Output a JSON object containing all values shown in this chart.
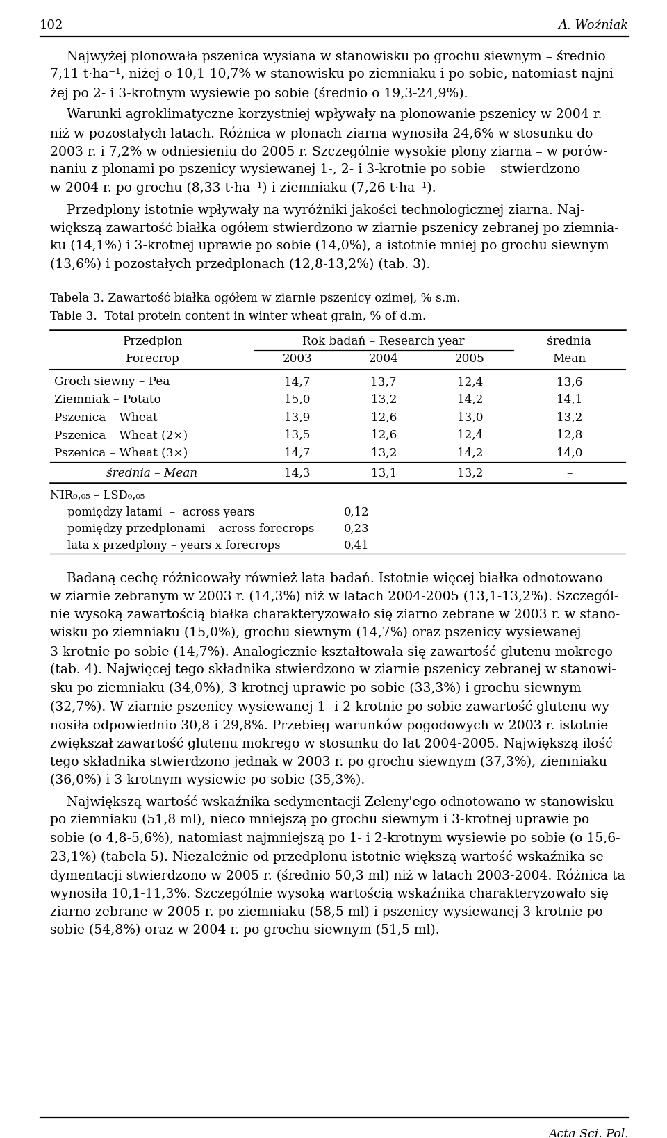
{
  "page_number": "102",
  "page_author": "A. Woźniak",
  "paragraph1_lines": [
    "    Najwyżej plonowała pszenica wysiana w stanowisku po grochu siewnym – średnio",
    "7,11 t·ha⁻¹, niżej o 10,1-10,7% w stanowisku po ziemniaku i po sobie, natomiast najni-",
    "żej po 2- i 3-krotnym wysiewie po sobie (średnio o 19,3-24,9%)."
  ],
  "paragraph2_lines": [
    "    Warunki agroklimatyczne korzystniej wpływały na plonowanie pszenicy w 2004 r.",
    "niż w pozostałych latach. Różnica w plonach ziarna wynosiła 24,6% w stosunku do",
    "2003 r. i 7,2% w odniesieniu do 2005 r. Szczególnie wysokie plony ziarna – w porów-",
    "naniu z plonami po pszenicy wysiewanej 1-, 2- i 3-krotnie po sobie – stwierdzono",
    "w 2004 r. po grochu (8,33 t·ha⁻¹) i ziemniaku (7,26 t·ha⁻¹)."
  ],
  "paragraph3_lines": [
    "    Przedplony istotnie wpływały na wyróżniki jakości technologicznej ziarna. Naj-",
    "większą zawartość białka ogółem stwierdzono w ziarnie pszenicy zebranej po ziemnia-",
    "ku (14,1%) i 3-krotnej uprawie po sobie (14,0%), a istotnie mniej po grochu siewnym",
    "(13,6%) i pozostałych przedplonach (12,8-13,2%) (tab. 3)."
  ],
  "table_title_pl": "Tabela 3. Zawartość białka ogółem w ziarnie pszenicy ozimej, % s.m.",
  "table_title_en": "Table 3.  Total protein content in winter wheat grain, % of d.m.",
  "table_header_col1": [
    "Przedplon",
    "Forecrop"
  ],
  "table_header_years_label": "Rok badań – Research year",
  "table_header_years": [
    "2003",
    "2004",
    "2005"
  ],
  "table_header_mean": [
    "średnia",
    "Mean"
  ],
  "table_rows": [
    [
      "Groch siewny – Pea",
      "14,7",
      "13,7",
      "12,4",
      "13,6"
    ],
    [
      "Ziemniak – Potato",
      "15,0",
      "13,2",
      "14,2",
      "14,1"
    ],
    [
      "Pszenica – Wheat",
      "13,9",
      "12,6",
      "13,0",
      "13,2"
    ],
    [
      "Pszenica – Wheat (2×)",
      "13,5",
      "12,6",
      "12,4",
      "12,8"
    ],
    [
      "Pszenica – Wheat (3×)",
      "14,7",
      "13,2",
      "14,2",
      "14,0"
    ]
  ],
  "table_mean_row": [
    "średnia – Mean",
    "14,3",
    "13,1",
    "13,2",
    "–"
  ],
  "table_lsd_header": "NIR₀,₀₅ – LSD₀,₀₅",
  "table_lsd_rows": [
    [
      "pomiędzy latami  –  across years",
      "0,12"
    ],
    [
      "pomiędzy przedplonami – across forecrops",
      "0,23"
    ],
    [
      "lata x przedplony – years x forecrops",
      "0,41"
    ]
  ],
  "paragraph4_lines": [
    "    Badaną cechę różnicowały również lata badań. Istotnie więcej białka odnotowano",
    "w ziarnie zebranym w 2003 r. (14,3%) niż w latach 2004-2005 (13,1-13,2%). Szczegól-",
    "nie wysoką zawartością białka charakteryzowało się ziarno zebrane w 2003 r. w stano-",
    "wisku po ziemniaku (15,0%), grochu siewnym (14,7%) oraz pszenicy wysiewanej",
    "3-krotnie po sobie (14,7%). Analogicznie kształtowała się zawartość glutenu mokrego",
    "(tab. 4). Najwięcej tego składnika stwierdzono w ziarnie pszenicy zebranej w stanowi-",
    "sku po ziemniaku (34,0%), 3-krotnej uprawie po sobie (33,3%) i grochu siewnym",
    "(32,7%). W ziarnie pszenicy wysiewanej 1- i 2-krotnie po sobie zawartość glutenu wy-",
    "nosiła odpowiednio 30,8 i 29,8%. Przebieg warunków pogodowych w 2003 r. istotnie",
    "zwiększał zawartość glutenu mokrego w stosunku do lat 2004-2005. Największą ilość",
    "tego składnika stwierdzono jednak w 2003 r. po grochu siewnym (37,3%), ziemniaku",
    "(36,0%) i 3-krotnym wysiewie po sobie (35,3%)."
  ],
  "paragraph5_lines": [
    "    Największą wartość wskaźnika sedymentacji Zeleny'ego odnotowano w stanowisku",
    "po ziemniaku (51,8 ml), nieco mniejszą po grochu siewnym i 3-krotnej uprawie po",
    "sobie (o 4,8-5,6%), natomiast najmniejszą po 1- i 2-krotnym wysiewie po sobie (o 15,6-",
    "23,1%) (tabela 5). Niezależnie od przedplonu istotnie większą wartość wskaźnika se-",
    "dymentacji stwierdzono w 2005 r. (średnio 50,3 ml) niż w latach 2003-2004. Różnica ta",
    "wynosiła 10,1-11,3%. Szczególnie wysoką wartością wskaźnika charakteryzowało się",
    "ziarno zebrane w 2005 r. po ziemniaku (58,5 ml) i pszenicy wysiewanej 3-krotnie po",
    "sobie (54,8%) oraz w 2004 r. po grochu siewnym (51,5 ml)."
  ],
  "footer": "Acta Sci. Pol.",
  "bg_color": "#ffffff",
  "text_color": "#000000"
}
